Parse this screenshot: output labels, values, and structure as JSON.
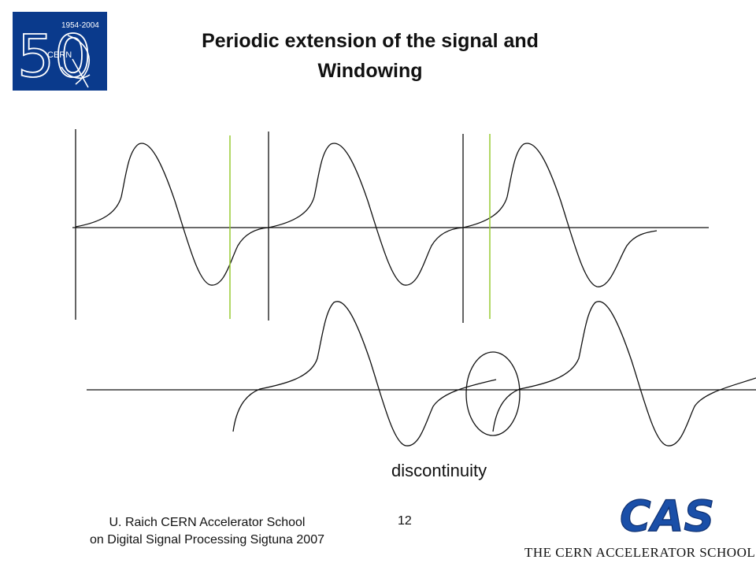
{
  "slide": {
    "title_line1": "Periodic extension of the signal and",
    "title_line2": "Windowing"
  },
  "annotation": {
    "label": "discontinuity"
  },
  "logo": {
    "icon": "cern-50-years-logo",
    "text_years": "1954-2004",
    "text_org": "CERN",
    "text_number": "50",
    "background_color": "#0a3a8c"
  },
  "footer": {
    "credit_line1": "U. Raich  CERN Accelerator School",
    "credit_line2": "on Digital Signal Processing  Sigtuna 2007",
    "page_number": "12",
    "cas_logo_text": "CAS",
    "cas_school_name": "THE CERN ACCELERATOR SCHOOL",
    "cas_color": "#1a4fa8"
  },
  "colors": {
    "signal": "#111111",
    "window_marker": "#99cc33"
  }
}
